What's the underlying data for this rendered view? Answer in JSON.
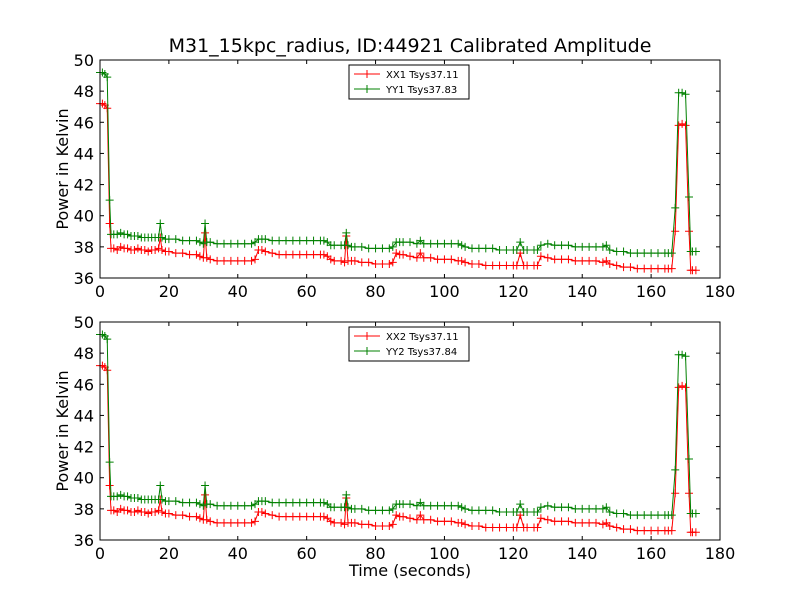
{
  "chart_data": {
    "title": "M31_15kpc_radius, ID:44921 Calibrated Amplitude",
    "xlabel": "Time (seconds)",
    "colors": {
      "xx": "#ff0000",
      "yy": "#008000"
    },
    "panels": [
      {
        "type": "line",
        "ylabel": "Power in Kelvin",
        "xlim": [
          0,
          180
        ],
        "ylim": [
          36,
          50
        ],
        "x_ticks": [
          "0",
          "20",
          "40",
          "60",
          "80",
          "100",
          "120",
          "140",
          "160",
          "180"
        ],
        "y_ticks": [
          "36",
          "38",
          "40",
          "42",
          "44",
          "46",
          "48",
          "50"
        ],
        "legend_position": "top-center",
        "series": [
          {
            "name": "XX1 Tsys37.11",
            "color": "#ff0000"
          },
          {
            "name": "YY1 Tsys37.83",
            "color": "#008000"
          }
        ]
      },
      {
        "type": "line",
        "ylabel": "Power in Kelvin",
        "xlim": [
          0,
          180
        ],
        "ylim": [
          36,
          50
        ],
        "x_ticks": [
          "0",
          "20",
          "40",
          "60",
          "80",
          "100",
          "120",
          "140",
          "160",
          "180"
        ],
        "y_ticks": [
          "36",
          "38",
          "40",
          "42",
          "44",
          "46",
          "48",
          "50"
        ],
        "legend_position": "top-center",
        "series": [
          {
            "name": "XX2 Tsys37.11",
            "color": "#ff0000"
          },
          {
            "name": "YY2 Tsys37.84",
            "color": "#008000"
          }
        ]
      }
    ],
    "shared_series": {
      "x": [
        0.0,
        0.7,
        1.4,
        2.1,
        2.8,
        3.2,
        4.0,
        5.0,
        6.0,
        7.0,
        8.0,
        9.0,
        10,
        11,
        12,
        13,
        14,
        15,
        16,
        17,
        17.5,
        18,
        19,
        20,
        22,
        24,
        26,
        28,
        29,
        30,
        30.5,
        31,
        32,
        34,
        36,
        38,
        40,
        42,
        44,
        45,
        46,
        47,
        48,
        50,
        52,
        54,
        56,
        58,
        60,
        62,
        64,
        65,
        66,
        67,
        68,
        70,
        71,
        71.5,
        72,
        73,
        74,
        76,
        78,
        80,
        82,
        84,
        85,
        86,
        87,
        88,
        90,
        92,
        93,
        94,
        96,
        98,
        100,
        102,
        104,
        105,
        106,
        108,
        110,
        112,
        114,
        116,
        118,
        120,
        121,
        122,
        123,
        124,
        126,
        127,
        128,
        130,
        132,
        134,
        136,
        138,
        140,
        142,
        144,
        146,
        147,
        148,
        150,
        152,
        154,
        156,
        158,
        160,
        162,
        164,
        165,
        166,
        167,
        168,
        169,
        170,
        171,
        171.5,
        172,
        173
      ],
      "xx": [
        47.2,
        47.2,
        47.1,
        46.9,
        39.5,
        37.9,
        37.9,
        37.8,
        38.0,
        37.9,
        37.9,
        37.8,
        37.8,
        37.9,
        37.8,
        37.8,
        37.7,
        37.8,
        37.8,
        37.9,
        38.6,
        37.8,
        37.7,
        37.7,
        37.6,
        37.6,
        37.5,
        37.5,
        37.4,
        37.3,
        38.9,
        37.3,
        37.2,
        37.1,
        37.1,
        37.1,
        37.1,
        37.1,
        37.1,
        37.2,
        37.8,
        37.8,
        37.7,
        37.6,
        37.5,
        37.5,
        37.5,
        37.5,
        37.5,
        37.5,
        37.5,
        37.5,
        37.4,
        37.2,
        37.1,
        37.1,
        37.0,
        38.7,
        37.1,
        37.1,
        37.1,
        37.0,
        37.0,
        36.9,
        36.9,
        36.9,
        37.0,
        37.6,
        37.5,
        37.5,
        37.4,
        37.3,
        37.6,
        37.3,
        37.3,
        37.2,
        37.2,
        37.2,
        37.1,
        37.1,
        37.0,
        36.9,
        36.9,
        36.8,
        36.8,
        36.8,
        36.8,
        36.8,
        36.8,
        37.6,
        36.8,
        36.8,
        36.8,
        36.8,
        37.4,
        37.3,
        37.2,
        37.2,
        37.2,
        37.1,
        37.1,
        37.1,
        37.1,
        37.0,
        37.1,
        36.9,
        36.8,
        36.7,
        36.7,
        36.6,
        36.6,
        36.6,
        36.6,
        36.6,
        36.6,
        36.6,
        39.0,
        45.8,
        45.9,
        45.8,
        39.0,
        36.5,
        36.5,
        36.5
      ],
      "yy": [
        49.2,
        49.2,
        49.1,
        48.9,
        41.0,
        38.8,
        38.8,
        38.8,
        38.9,
        38.8,
        38.8,
        38.7,
        38.7,
        38.7,
        38.6,
        38.6,
        38.6,
        38.6,
        38.6,
        38.6,
        39.5,
        38.6,
        38.5,
        38.5,
        38.5,
        38.4,
        38.4,
        38.4,
        38.3,
        38.2,
        39.5,
        38.3,
        38.3,
        38.2,
        38.2,
        38.2,
        38.2,
        38.2,
        38.2,
        38.3,
        38.5,
        38.5,
        38.5,
        38.4,
        38.4,
        38.4,
        38.4,
        38.4,
        38.4,
        38.4,
        38.4,
        38.4,
        38.3,
        38.1,
        38.1,
        38.1,
        38.1,
        38.9,
        38.1,
        38.0,
        38.0,
        38.0,
        37.9,
        37.9,
        37.9,
        37.9,
        38.0,
        38.3,
        38.3,
        38.3,
        38.3,
        38.2,
        38.4,
        38.2,
        38.2,
        38.2,
        38.2,
        38.2,
        38.2,
        38.1,
        38.0,
        37.9,
        37.9,
        37.9,
        37.9,
        37.8,
        37.8,
        37.8,
        37.8,
        38.3,
        37.8,
        37.8,
        37.8,
        37.8,
        38.1,
        38.2,
        38.1,
        38.1,
        38.1,
        38.0,
        38.0,
        38.0,
        38.0,
        38.0,
        38.1,
        37.8,
        37.7,
        37.7,
        37.6,
        37.6,
        37.6,
        37.6,
        37.6,
        37.6,
        37.6,
        37.6,
        40.5,
        47.9,
        47.9,
        47.8,
        41.2,
        37.7,
        37.7,
        37.7
      ]
    }
  }
}
